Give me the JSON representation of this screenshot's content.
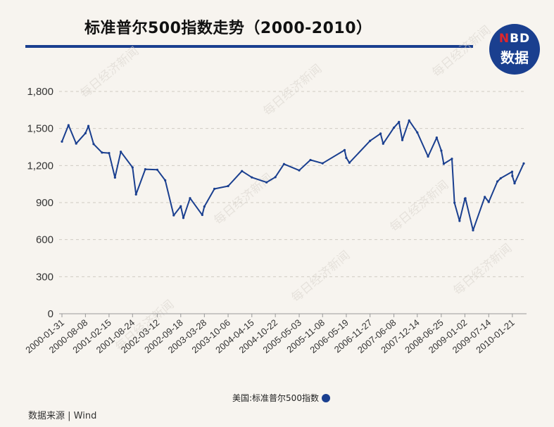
{
  "header": {
    "title": "标准普尔500指数走势（2000-2010）"
  },
  "logo": {
    "line1_prefix": "N",
    "line1_rest": "BD",
    "line2": "数据"
  },
  "watermark": "每日经济新闻",
  "footer": {
    "source": "数据来源 | Wind"
  },
  "colors": {
    "line": "#1a3f8f",
    "rule": "#1a3f8f",
    "logo_bg": "#1a3f8f",
    "logo_accent": "#e0262b",
    "background": "#f7f4ef"
  },
  "chart_data": {
    "type": "line",
    "title": "标准普尔500指数走势（2000-2010）",
    "xlabel": "",
    "ylabel": "",
    "ylim": [
      0,
      1800
    ],
    "yticks": [
      0,
      300,
      600,
      900,
      1200,
      1500,
      1800
    ],
    "ytick_labels": [
      "0",
      "300",
      "600",
      "900",
      "1,200",
      "1,500",
      "1,800"
    ],
    "xtick_labels": [
      "2000-01-31",
      "2000-08-08",
      "2001-02-15",
      "2001-08-24",
      "2002-03-12",
      "2002-09-18",
      "2003-03-28",
      "2003-10-06",
      "2004-04-15",
      "2004-10-22",
      "2005-05-03",
      "2005-11-08",
      "2006-05-19",
      "2006-11-27",
      "2007-06-08",
      "2007-12-14",
      "2008-06-25",
      "2009-01-02",
      "2009-07-14",
      "2010-01-21"
    ],
    "grid": true,
    "legend_position": "bottom",
    "series": [
      {
        "name": "美国:标准普尔500指数",
        "x": [
          "2000-01-31",
          "2000-03-24",
          "2000-05-25",
          "2000-08-08",
          "2000-09-01",
          "2000-10-13",
          "2000-12-20",
          "2001-02-15",
          "2001-04-04",
          "2001-05-21",
          "2001-08-24",
          "2001-09-21",
          "2001-12-05",
          "2002-03-12",
          "2002-05-15",
          "2002-07-23",
          "2002-09-18",
          "2002-10-09",
          "2002-12-02",
          "2003-03-11",
          "2003-03-28",
          "2003-06-17",
          "2003-10-06",
          "2004-01-26",
          "2004-04-15",
          "2004-08-12",
          "2004-10-22",
          "2004-12-31",
          "2005-05-03",
          "2005-08-02",
          "2005-11-08",
          "2006-05-05",
          "2006-05-19",
          "2006-06-13",
          "2006-11-27",
          "2007-02-20",
          "2007-03-13",
          "2007-06-08",
          "2007-07-19",
          "2007-08-15",
          "2007-10-09",
          "2007-12-14",
          "2008-03-10",
          "2008-05-19",
          "2008-06-25",
          "2008-07-15",
          "2008-09-19",
          "2008-10-10",
          "2008-11-20",
          "2009-01-02",
          "2009-01-06",
          "2009-03-09",
          "2009-06-12",
          "2009-07-14",
          "2009-09-22",
          "2009-10-19",
          "2010-01-19",
          "2010-01-21",
          "2010-02-08",
          "2010-04-23"
        ],
        "values": [
          1394,
          1527,
          1378,
          1462,
          1520,
          1374,
          1305,
          1301,
          1103,
          1312,
          1185,
          966,
          1170,
          1166,
          1080,
          797,
          870,
          776,
          936,
          800,
          868,
          1011,
          1034,
          1155,
          1104,
          1064,
          1106,
          1212,
          1161,
          1245,
          1218,
          1325,
          1262,
          1223,
          1400,
          1459,
          1377,
          1507,
          1553,
          1406,
          1565,
          1468,
          1273,
          1426,
          1321,
          1214,
          1255,
          899,
          752,
          931,
          935,
          676,
          946,
          905,
          1071,
          1097,
          1150,
          1116,
          1056,
          1217
        ]
      }
    ]
  }
}
